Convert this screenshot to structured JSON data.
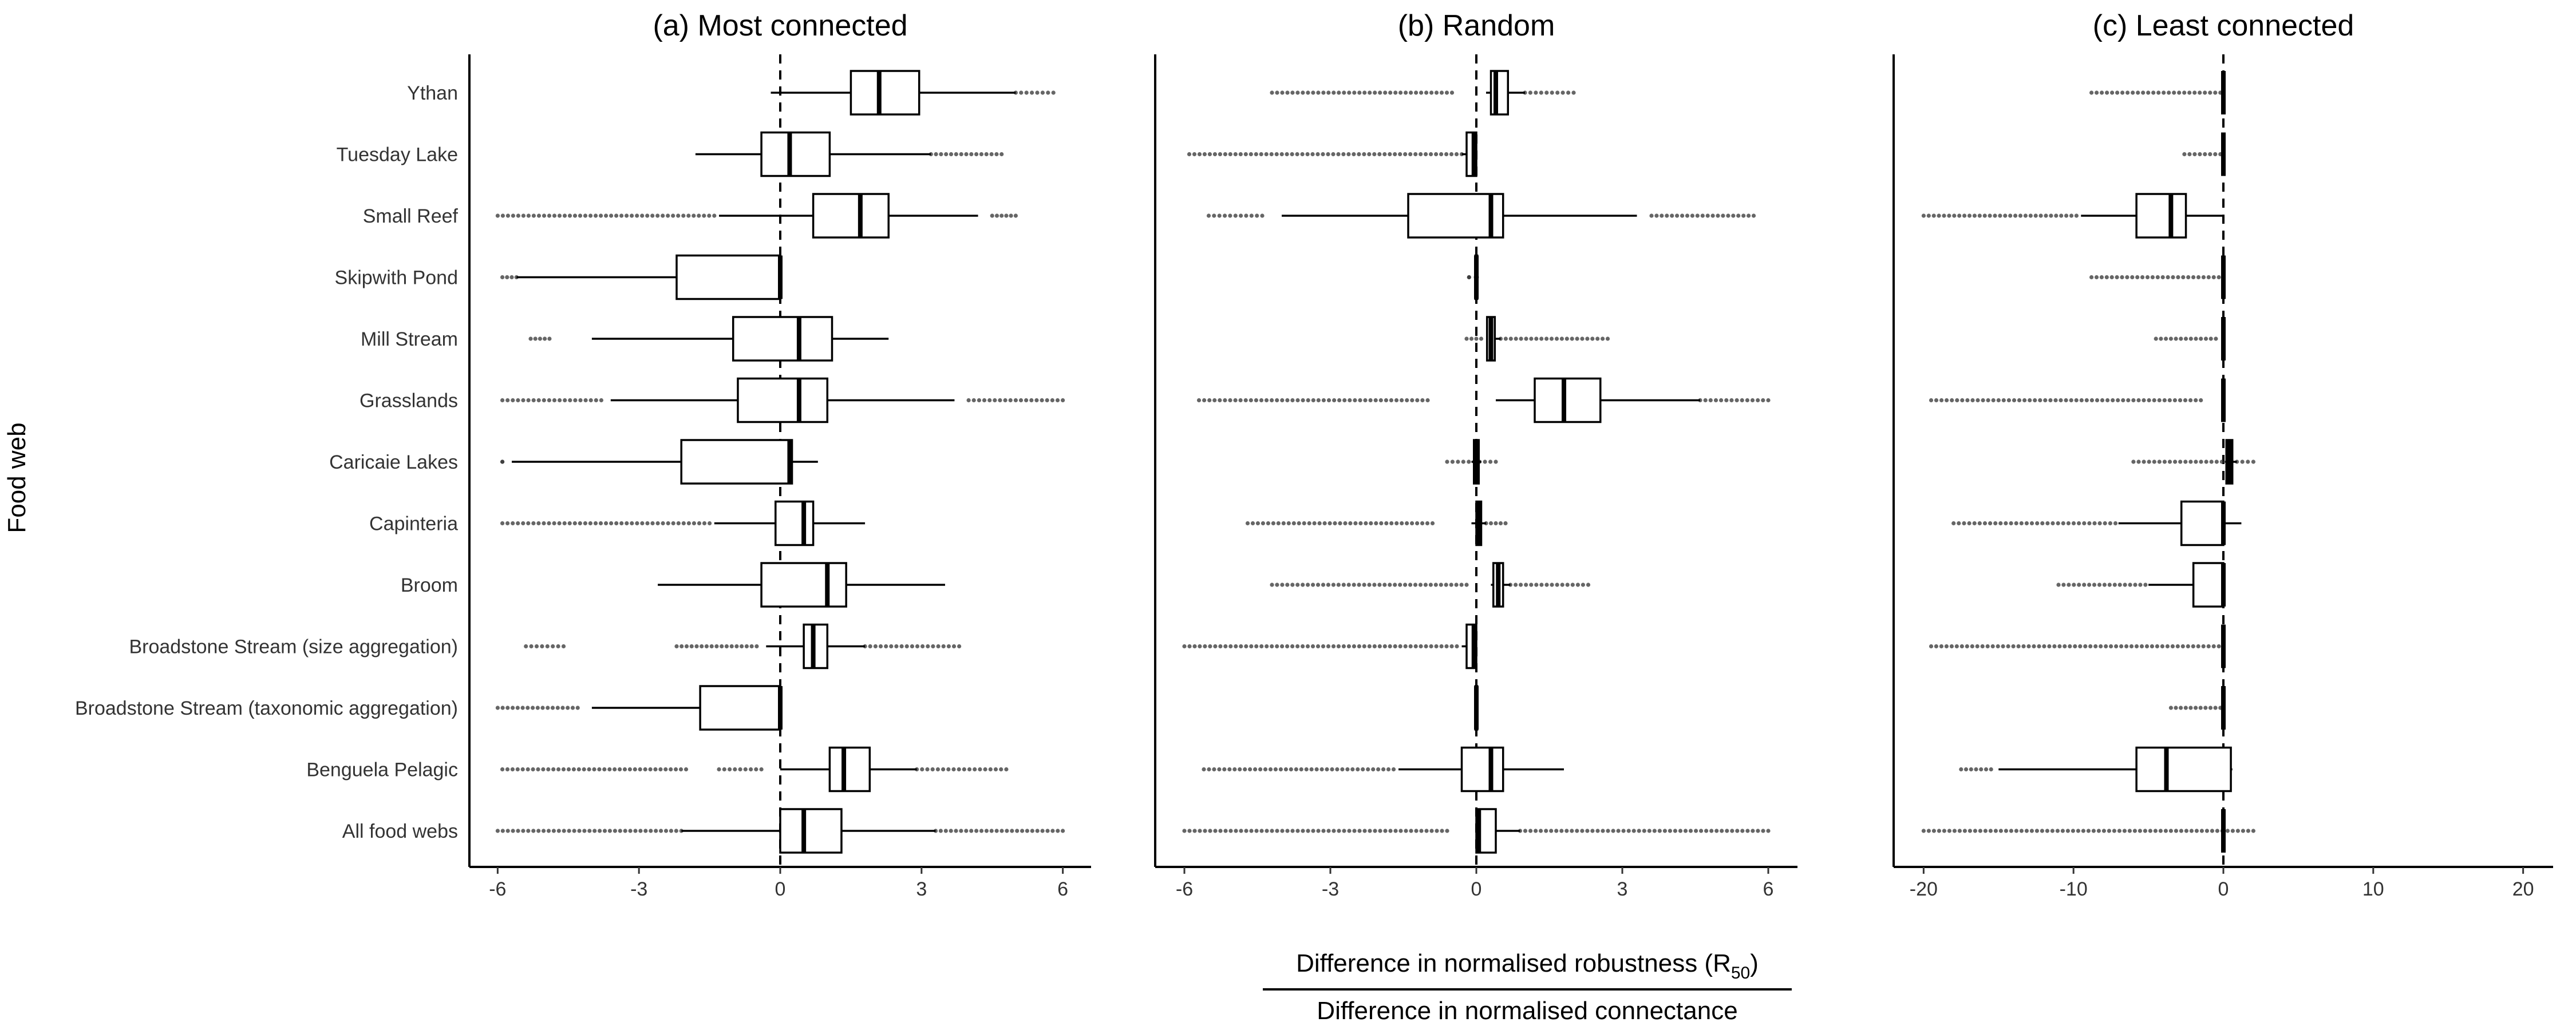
{
  "chart_data": {
    "type": "boxplot",
    "y_axis_title": "Food web",
    "x_axis_title": {
      "numerator_prefix": "Difference in normalised robustness (",
      "numerator_symbol": "R",
      "numerator_subscript": "50",
      "numerator_suffix": ")",
      "denominator": "Difference in normalised connectance"
    },
    "categories": [
      "Ythan",
      "Tuesday Lake",
      "Small Reef",
      "Skipwith Pond",
      "Mill Stream",
      "Grasslands",
      "Caricaie Lakes",
      "Capinteria",
      "Broom",
      "Broadstone Stream (size aggregation)",
      "Broadstone Stream (taxonomic aggregation)",
      "Benguela Pelagic",
      "All food webs"
    ],
    "panels": [
      {
        "title": "(a) Most connected",
        "xlim": [
          -6.6,
          6.6
        ],
        "xticks": [
          -6,
          -3,
          0,
          3,
          6
        ],
        "xtick_labels": [
          "-6",
          "-3",
          "0",
          "3",
          "6"
        ],
        "boxes": [
          {
            "lo": -0.2,
            "q1": 1.5,
            "med": 2.1,
            "q3": 2.95,
            "hi": 5.0,
            "outliers": [
              [
                5.0,
                5.8
              ]
            ]
          },
          {
            "lo": -1.8,
            "q1": -0.4,
            "med": 0.2,
            "q3": 1.05,
            "hi": 3.2,
            "outliers": [
              [
                3.2,
                4.7
              ]
            ]
          },
          {
            "lo": -1.3,
            "q1": 0.7,
            "med": 1.7,
            "q3": 2.3,
            "hi": 4.2,
            "outliers": [
              [
                -6.0,
                -1.4
              ],
              [
                4.5,
                5.0
              ]
            ]
          },
          {
            "lo": -5.6,
            "q1": -2.2,
            "med": 0.0,
            "q3": 0.0,
            "hi": 0.0,
            "outliers": [
              [
                -5.9,
                -5.6
              ]
            ]
          },
          {
            "lo": -4.0,
            "q1": -1.0,
            "med": 0.4,
            "q3": 1.1,
            "hi": 2.3,
            "outliers": [
              [
                -5.3,
                -4.9
              ]
            ]
          },
          {
            "lo": -3.6,
            "q1": -0.9,
            "med": 0.4,
            "q3": 1.0,
            "hi": 3.7,
            "outliers": [
              [
                -5.9,
                -3.8
              ],
              [
                4.0,
                6.0
              ]
            ]
          },
          {
            "lo": -5.7,
            "q1": -2.1,
            "med": 0.2,
            "q3": 0.25,
            "hi": 0.8,
            "outliers": [
              [
                -5.9,
                -5.9
              ]
            ]
          },
          {
            "lo": -1.4,
            "q1": -0.1,
            "med": 0.5,
            "q3": 0.7,
            "hi": 1.8,
            "outliers": [
              [
                -5.9,
                -1.5
              ]
            ]
          },
          {
            "lo": -2.6,
            "q1": -0.4,
            "med": 1.0,
            "q3": 1.4,
            "hi": 3.5,
            "outliers": []
          },
          {
            "lo": -0.3,
            "q1": 0.5,
            "med": 0.7,
            "q3": 1.0,
            "hi": 1.8,
            "outliers": [
              [
                -5.4,
                -4.6
              ],
              [
                -2.2,
                -0.5
              ],
              [
                1.8,
                3.8
              ]
            ]
          },
          {
            "lo": -4.0,
            "q1": -1.7,
            "med": 0.0,
            "q3": 0.0,
            "hi": 0.0,
            "outliers": [
              [
                -6.0,
                -4.3
              ]
            ]
          },
          {
            "lo": 0.0,
            "q1": 1.05,
            "med": 1.35,
            "q3": 1.9,
            "hi": 2.9,
            "outliers": [
              [
                -5.9,
                -2.0
              ],
              [
                -1.3,
                -0.4
              ],
              [
                2.9,
                4.8
              ]
            ]
          },
          {
            "lo": -2.1,
            "q1": 0.0,
            "med": 0.5,
            "q3": 1.3,
            "hi": 3.3,
            "outliers": [
              [
                -6.0,
                -2.1
              ],
              [
                3.3,
                6.0
              ]
            ]
          }
        ]
      },
      {
        "title": "(b) Random",
        "xlim": [
          -6.6,
          6.6
        ],
        "xticks": [
          -6,
          -3,
          0,
          3,
          6
        ],
        "xtick_labels": [
          "-6",
          "-3",
          "0",
          "3",
          "6"
        ],
        "boxes": [
          {
            "lo": 0.2,
            "q1": 0.3,
            "med": 0.4,
            "q3": 0.65,
            "hi": 1.0,
            "outliers": [
              [
                -4.2,
                -0.5
              ],
              [
                1.0,
                2.0
              ]
            ]
          },
          {
            "lo": -0.3,
            "q1": -0.2,
            "med": -0.05,
            "q3": 0.0,
            "hi": 0.0,
            "outliers": [
              [
                -5.9,
                -0.3
              ]
            ]
          },
          {
            "lo": -4.0,
            "q1": -1.4,
            "med": 0.3,
            "q3": 0.55,
            "hi": 3.3,
            "outliers": [
              [
                -5.5,
                -4.4
              ],
              [
                3.6,
                5.7
              ]
            ]
          },
          {
            "lo": -0.05,
            "q1": -0.02,
            "med": 0.0,
            "q3": 0.02,
            "hi": 0.05,
            "outliers": [
              [
                -0.15,
                -0.15
              ]
            ]
          },
          {
            "lo": 0.2,
            "q1": 0.22,
            "med": 0.3,
            "q3": 0.38,
            "hi": 0.5,
            "outliers": [
              [
                -0.2,
                0.1
              ],
              [
                0.5,
                2.7
              ]
            ]
          },
          {
            "lo": 0.4,
            "q1": 1.2,
            "med": 1.8,
            "q3": 2.55,
            "hi": 4.6,
            "outliers": [
              [
                -5.7,
                -1.0
              ],
              [
                4.6,
                6.0
              ]
            ]
          },
          {
            "lo": -0.1,
            "q1": -0.05,
            "med": 0.0,
            "q3": 0.05,
            "hi": 0.1,
            "outliers": [
              [
                -0.6,
                0.4
              ]
            ]
          },
          {
            "lo": -0.1,
            "q1": 0.0,
            "med": 0.05,
            "q3": 0.1,
            "hi": 0.2,
            "outliers": [
              [
                -4.7,
                -0.9
              ],
              [
                0.2,
                0.6
              ]
            ]
          },
          {
            "lo": 0.3,
            "q1": 0.35,
            "med": 0.45,
            "q3": 0.55,
            "hi": 0.7,
            "outliers": [
              [
                -4.2,
                -0.2
              ],
              [
                0.7,
                2.3
              ]
            ]
          },
          {
            "lo": -0.3,
            "q1": -0.2,
            "med": -0.05,
            "q3": 0.0,
            "hi": 0.0,
            "outliers": [
              [
                -6.0,
                -0.4
              ]
            ]
          },
          {
            "lo": -0.03,
            "q1": -0.02,
            "med": 0.0,
            "q3": 0.02,
            "hi": 0.03,
            "outliers": []
          },
          {
            "lo": -1.6,
            "q1": -0.3,
            "med": 0.3,
            "q3": 0.55,
            "hi": 1.8,
            "outliers": [
              [
                -5.6,
                -1.7
              ]
            ]
          },
          {
            "lo": 0.0,
            "q1": 0.0,
            "med": 0.05,
            "q3": 0.4,
            "hi": 0.9,
            "outliers": [
              [
                -6.0,
                -0.6
              ],
              [
                0.9,
                6.0
              ]
            ]
          }
        ]
      },
      {
        "title": "(c) Least connected",
        "xlim": [
          -22,
          22
        ],
        "xticks": [
          -20,
          -10,
          0,
          10,
          20
        ],
        "xtick_labels": [
          "-20",
          "-10",
          "0",
          "10",
          "20"
        ],
        "boxes": [
          {
            "lo": 0.0,
            "q1": 0.0,
            "med": 0.0,
            "q3": 0.0,
            "hi": 0.0,
            "outliers": [
              [
                -8.8,
                -0.2
              ]
            ]
          },
          {
            "lo": 0.0,
            "q1": 0.0,
            "med": 0.0,
            "q3": 0.0,
            "hi": 0.0,
            "outliers": [
              [
                -2.6,
                -0.2
              ]
            ]
          },
          {
            "lo": -9.5,
            "q1": -5.8,
            "med": -3.5,
            "q3": -2.5,
            "hi": 0.0,
            "outliers": [
              [
                -20.0,
                -9.8
              ]
            ]
          },
          {
            "lo": 0.0,
            "q1": 0.0,
            "med": 0.0,
            "q3": 0.0,
            "hi": 0.0,
            "outliers": [
              [
                -8.8,
                -0.3
              ]
            ]
          },
          {
            "lo": 0.0,
            "q1": 0.0,
            "med": 0.0,
            "q3": 0.0,
            "hi": 0.0,
            "outliers": [
              [
                -4.5,
                -0.5
              ]
            ]
          },
          {
            "lo": 0.0,
            "q1": 0.0,
            "med": 0.0,
            "q3": 0.0,
            "hi": 0.0,
            "outliers": [
              [
                -19.5,
                -1.5
              ]
            ]
          },
          {
            "lo": 0.1,
            "q1": 0.2,
            "med": 0.4,
            "q3": 0.6,
            "hi": 0.9,
            "outliers": [
              [
                -6.0,
                -0.1
              ],
              [
                0.9,
                2.0
              ]
            ]
          },
          {
            "lo": -7.0,
            "q1": -2.8,
            "med": 0.0,
            "q3": 0.0,
            "hi": 1.2,
            "outliers": [
              [
                -18.0,
                -7.2
              ]
            ]
          },
          {
            "lo": -5.0,
            "q1": -2.0,
            "med": 0.0,
            "q3": 0.0,
            "hi": 0.0,
            "outliers": [
              [
                -11.0,
                -5.2
              ]
            ]
          },
          {
            "lo": 0.0,
            "q1": 0.0,
            "med": 0.0,
            "q3": 0.0,
            "hi": 0.0,
            "outliers": [
              [
                -19.5,
                -0.3
              ]
            ]
          },
          {
            "lo": 0.0,
            "q1": 0.0,
            "med": 0.0,
            "q3": 0.0,
            "hi": 0.0,
            "outliers": [
              [
                -3.5,
                -0.2
              ]
            ]
          },
          {
            "lo": -15.0,
            "q1": -5.8,
            "med": -3.8,
            "q3": 0.5,
            "hi": 0.6,
            "outliers": [
              [
                -17.5,
                -15.5
              ]
            ]
          },
          {
            "lo": 0.0,
            "q1": 0.0,
            "med": 0.0,
            "q3": 0.0,
            "hi": 0.0,
            "outliers": [
              [
                -20.0,
                2.0
              ]
            ]
          }
        ]
      }
    ]
  }
}
